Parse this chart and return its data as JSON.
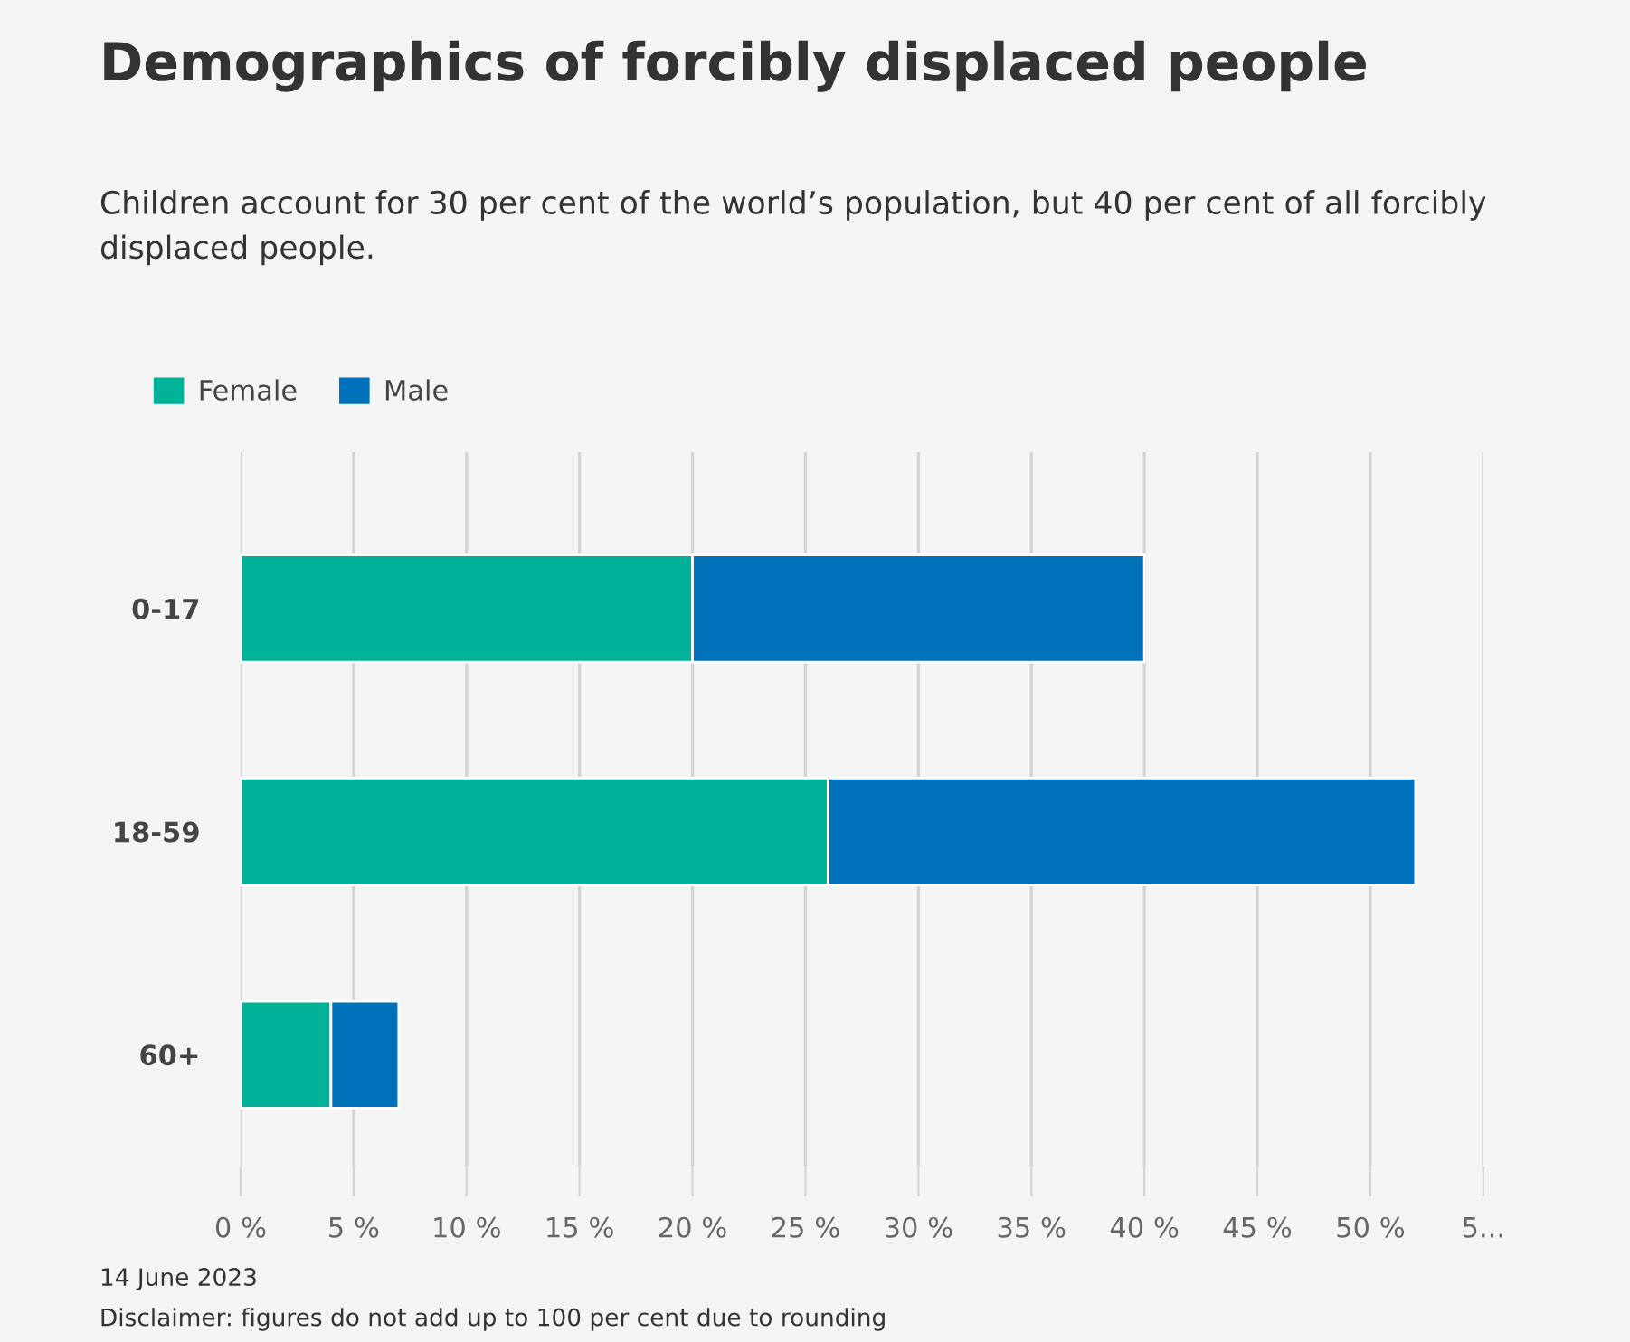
{
  "chart_data": {
    "type": "bar",
    "orientation": "horizontal",
    "stacked": true,
    "title": "Demographics of forcibly displaced people",
    "subtitle": "Children account for 30 per cent of the world’s population, but 40 per cent of all forcibly displaced people.",
    "categories": [
      "0-17",
      "18-59",
      "60+"
    ],
    "series": [
      {
        "name": "Female",
        "color": "#00b398",
        "values": [
          20,
          26,
          4
        ]
      },
      {
        "name": "Male",
        "color": "#0072bc",
        "values": [
          20,
          26,
          3
        ]
      }
    ],
    "xlim": [
      0,
      55
    ],
    "xticks": [
      {
        "value": 0,
        "label": "0 %"
      },
      {
        "value": 5,
        "label": "5 %"
      },
      {
        "value": 10,
        "label": "10 %"
      },
      {
        "value": 15,
        "label": "15 %"
      },
      {
        "value": 20,
        "label": "20 %"
      },
      {
        "value": 25,
        "label": "25 %"
      },
      {
        "value": 30,
        "label": "30 %"
      },
      {
        "value": 35,
        "label": "35 %"
      },
      {
        "value": 40,
        "label": "40 %"
      },
      {
        "value": 45,
        "label": "45 %"
      },
      {
        "value": 50,
        "label": "50 %"
      },
      {
        "value": 55,
        "label": "5..."
      }
    ],
    "grid": "x",
    "legend": "top left",
    "annotations": [
      "14 June 2023",
      "Disclaimer: figures do not add up to 100 per cent due to rounding"
    ]
  }
}
